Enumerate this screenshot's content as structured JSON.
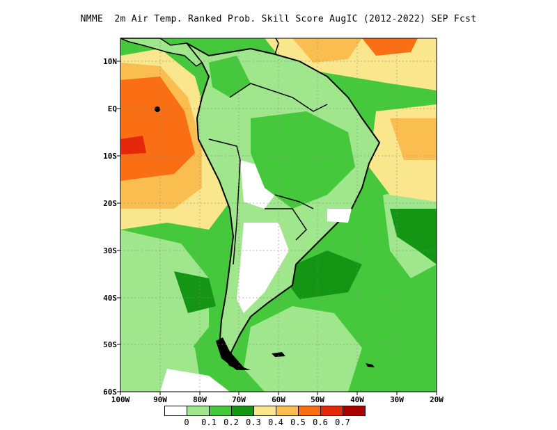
{
  "title": "NMME  2m Air Temp. Ranked Prob. Skill Score AugIC (2012-2022) SEP Fcst",
  "axes": {
    "lat_ticks": [
      "10N",
      "EQ",
      "10S",
      "20S",
      "30S",
      "40S",
      "50S",
      "60S"
    ],
    "lon_ticks": [
      "100W",
      "90W",
      "80W",
      "70W",
      "60W",
      "50W",
      "40W",
      "30W",
      "20W"
    ]
  },
  "colorbar": {
    "colors": [
      "#ffffff",
      "#a0e68c",
      "#46c83c",
      "#149614",
      "#fae68c",
      "#fabe50",
      "#fa6e14",
      "#e6280a",
      "#aa0000"
    ],
    "labels": [
      "0",
      "0.1",
      "0.2",
      "0.3",
      "0.4",
      "0.5",
      "0.6",
      "0.7"
    ]
  },
  "colors": {
    "ocean_green": "#46c83c",
    "land_green": "#a0e68c",
    "warm_orange": "#fa6e14",
    "coast": "#000000"
  }
}
